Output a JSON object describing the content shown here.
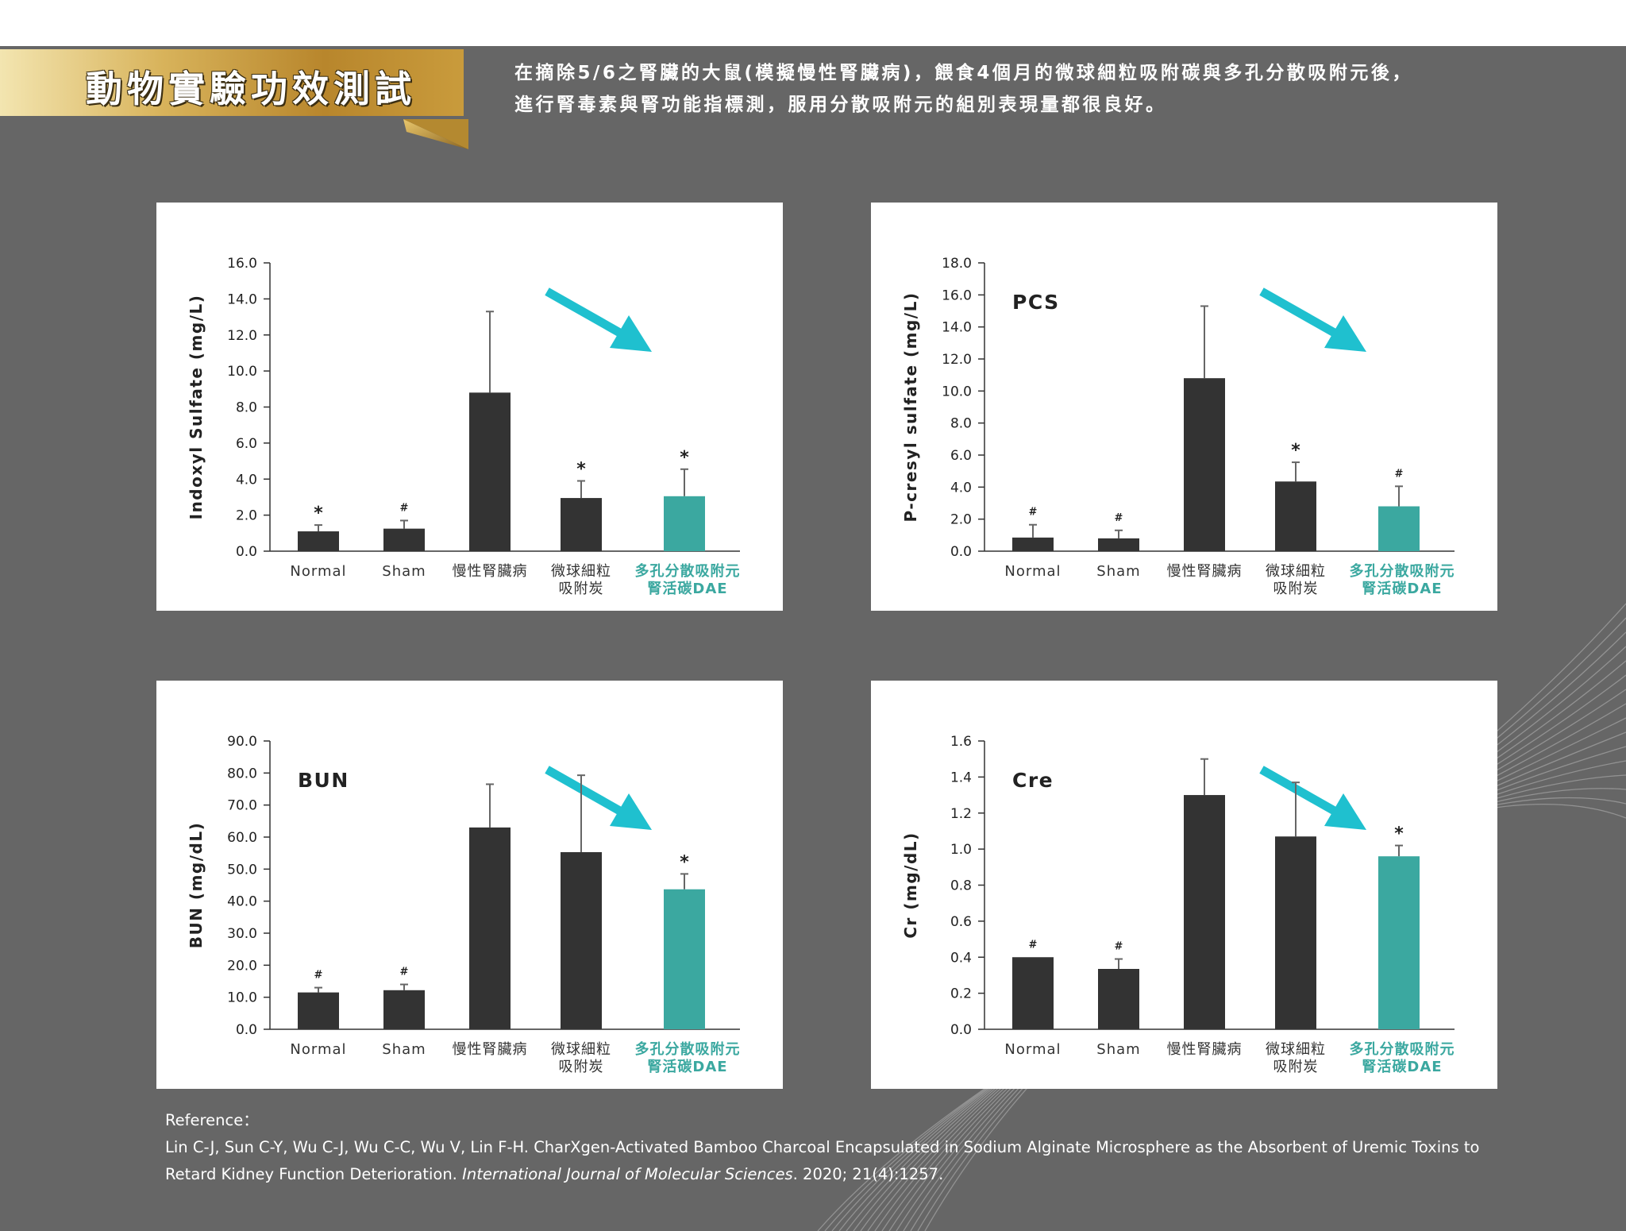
{
  "header": {
    "title": "動物實驗功效測試",
    "intro_line1": "在摘除5/6之腎臟的大鼠(模擬慢性腎臟病)，餵食4個月的微球細粒吸附碳與多孔分散吸附元後，",
    "intro_line2": "進行腎毒素與腎功能指標測，服用分散吸附元的組別表現量都很良好。"
  },
  "colors": {
    "background": "#666666",
    "bar_dark": "#333333",
    "bar_teal": "#3ba8a0",
    "arrow": "#1fc0cf",
    "label_teal": "#3ba8a0",
    "gold": "#c9a24a"
  },
  "chart_data": [
    {
      "type": "bar",
      "title": "",
      "ylabel": "Indoxyl Sulfate (mg/L)",
      "ylim": [
        0,
        16
      ],
      "yticks": [
        "0.0",
        "2.0",
        "4.0",
        "6.0",
        "8.0",
        "10.0",
        "12.0",
        "14.0",
        "16.0"
      ],
      "categories": [
        "Normal",
        "Sham",
        "慢性腎臟病",
        "微球細粒|吸附炭",
        "多孔分散吸附元|腎活碳DAE"
      ],
      "values": [
        1.1,
        1.25,
        8.8,
        2.95,
        3.05
      ],
      "errors": [
        0.35,
        0.45,
        4.5,
        0.95,
        1.5
      ],
      "markers": [
        "*",
        "#",
        "",
        "*",
        "*"
      ],
      "trend_arrow": "down"
    },
    {
      "type": "bar",
      "title": "PCS",
      "ylabel": "P-cresyl sulfate (mg/L)",
      "ylim": [
        0,
        18
      ],
      "yticks": [
        "0.0",
        "2.0",
        "4.0",
        "6.0",
        "8.0",
        "10.0",
        "12.0",
        "14.0",
        "16.0",
        "18.0"
      ],
      "categories": [
        "Normal",
        "Sham",
        "慢性腎臟病",
        "微球細粒|吸附炭",
        "多孔分散吸附元|腎活碳DAE"
      ],
      "values": [
        0.85,
        0.8,
        10.8,
        4.35,
        2.8
      ],
      "errors": [
        0.8,
        0.5,
        4.5,
        1.2,
        1.25
      ],
      "markers": [
        "#",
        "#",
        "",
        "*",
        "#"
      ],
      "trend_arrow": "down"
    },
    {
      "type": "bar",
      "title": "BUN",
      "ylabel": "BUN (mg/dL)",
      "ylim": [
        0,
        90
      ],
      "yticks": [
        "0.0",
        "10.0",
        "20.0",
        "30.0",
        "40.0",
        "50.0",
        "60.0",
        "70.0",
        "80.0",
        "90.0"
      ],
      "categories": [
        "Normal",
        "Sham",
        "慢性腎臟病",
        "微球細粒|吸附炭",
        "多孔分散吸附元|腎活碳DAE"
      ],
      "values": [
        11.5,
        12.2,
        63.0,
        55.3,
        43.7
      ],
      "errors": [
        1.5,
        1.8,
        13.5,
        24.0,
        4.8
      ],
      "markers": [
        "#",
        "#",
        "",
        "",
        "*"
      ],
      "trend_arrow": "down"
    },
    {
      "type": "bar",
      "title": "Cre",
      "ylabel": "Cr (mg/dL)",
      "ylim": [
        0,
        1.6
      ],
      "yticks": [
        "0.0",
        "0.2",
        "0.4",
        "0.6",
        "0.8",
        "1.0",
        "1.2",
        "1.4",
        "1.6"
      ],
      "categories": [
        "Normal",
        "Sham",
        "慢性腎臟病",
        "微球細粒|吸附炭",
        "多孔分散吸附元|腎活碳DAE"
      ],
      "values": [
        0.4,
        0.335,
        1.3,
        1.07,
        0.96
      ],
      "errors": [
        0,
        0.055,
        0.2,
        0.3,
        0.06
      ],
      "markers": [
        "#",
        "#",
        "",
        "",
        "*"
      ],
      "trend_arrow": "down"
    }
  ],
  "reference": {
    "heading": "Reference：",
    "line1": "Lin C-J, Sun C-Y, Wu C-J, Wu C-C, Wu V, Lin F-H. CharXgen-Activated Bamboo Charcoal Encapsulated in Sodium Alginate Microsphere as the Absorbent of Uremic Toxins to",
    "line2_plain": "Retard Kidney Function Deterioration. ",
    "line2_journal": "International Journal of Molecular Sciences",
    "line2_tail": ". 2020; 21(4):1257."
  }
}
